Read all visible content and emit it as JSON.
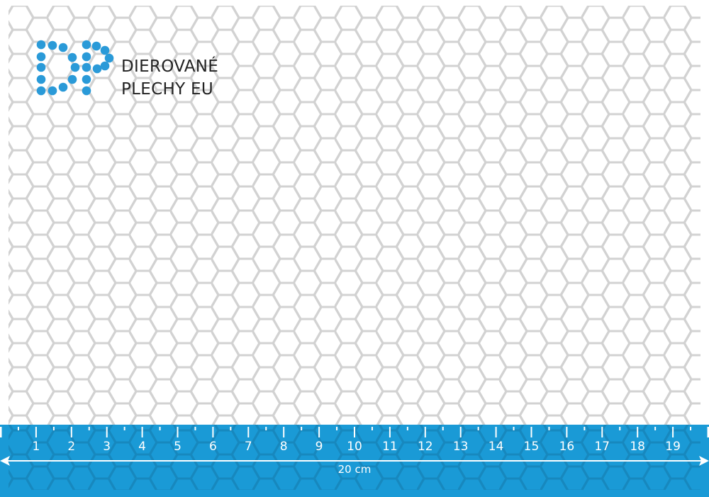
{
  "brand": {
    "line1": "DIEROVANÉ",
    "line2": "PLECHY EU",
    "logo_letters": "DP",
    "color": "#2a9ad8"
  },
  "sheet": {
    "pattern": "hexagonal perforation",
    "line_color": "#cfcfcf"
  },
  "ruler": {
    "color": "#1a9ad6",
    "labels": [
      "1",
      "2",
      "3",
      "4",
      "5",
      "6",
      "7",
      "8",
      "9",
      "10",
      "11",
      "12",
      "13",
      "14",
      "15",
      "16",
      "17",
      "18",
      "19"
    ],
    "length_label": "20 cm",
    "length_cm": 20
  }
}
